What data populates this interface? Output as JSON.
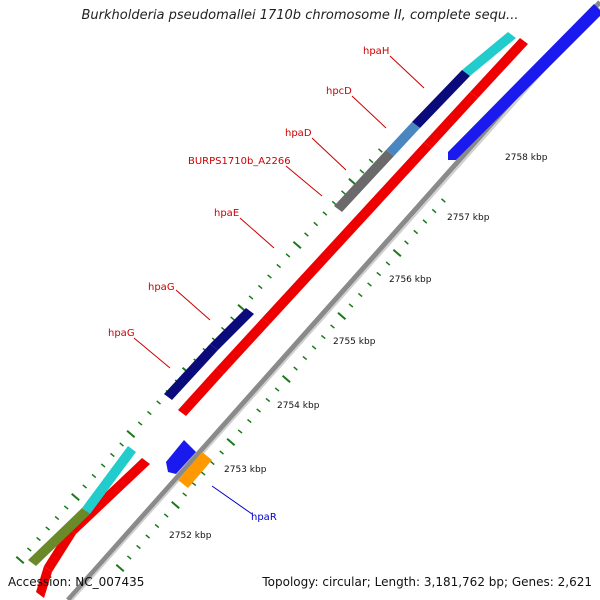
{
  "title": "Burkholderia pseudomallei 1710b chromosome II, complete sequ...",
  "accession": "Accession: NC_007435",
  "topology": "Topology: circular; Length: 3,181,762 bp; Genes: 2,621",
  "gene_labels": [
    {
      "text": "hpaH",
      "color": "#cc0000"
    },
    {
      "text": "hpcD",
      "color": "#cc0000"
    },
    {
      "text": "hpaD",
      "color": "#cc0000"
    },
    {
      "text": "BURPS1710b_A2266",
      "color": "#cc0000"
    },
    {
      "text": "hpaE",
      "color": "#cc0000"
    },
    {
      "text": "hpaG",
      "color": "#cc0000"
    },
    {
      "text": "hpaG",
      "color": "#cc0000"
    },
    {
      "text": "hpaR",
      "color": "#0000cc"
    }
  ],
  "kbp_labels": [
    "2752 kbp",
    "2753 kbp",
    "2754 kbp",
    "2755 kbp",
    "2756 kbp",
    "2757 kbp",
    "2758 kbp"
  ],
  "colors": {
    "backbone": "#8a8a8a",
    "tick": "#1a7a1a",
    "red": "#ee0000",
    "navy": "#0a0a7a",
    "cyan": "#22cccc",
    "steel": "#4a86c0",
    "gray": "#6a6a6a",
    "blue": "#1a1aee",
    "orange": "#ff9900",
    "olive": "#6a8a2a"
  }
}
